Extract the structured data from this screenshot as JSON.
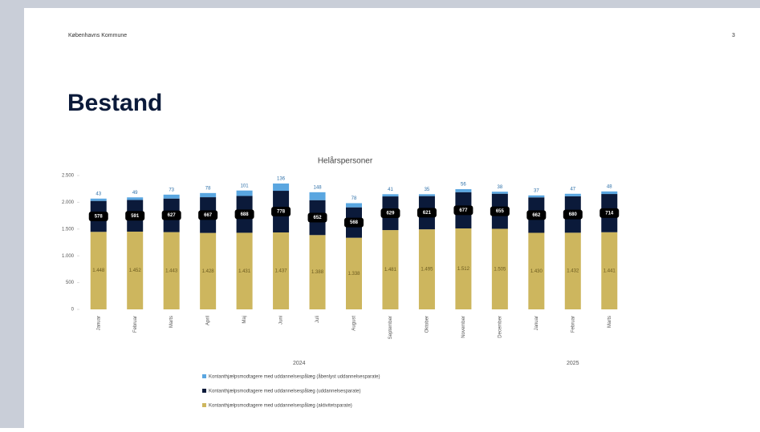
{
  "header": {
    "organization": "Københavns Kommune",
    "page_number": "3"
  },
  "title": "Bestand",
  "chart_data": {
    "type": "stacked_bar",
    "title": "Helårspersoner",
    "category_groups": [
      {
        "label": "2024",
        "categories": [
          "Januar",
          "Februar",
          "Marts",
          "April",
          "Maj",
          "Juni",
          "Juli",
          "August",
          "September",
          "Oktober",
          "November",
          "December"
        ]
      },
      {
        "label": "2025",
        "categories": [
          "Januar",
          "Februar",
          "Marts"
        ]
      }
    ],
    "series": [
      {
        "name": "Kontanthjælpsmodtagere med uddannelsespålæg (aktivitetsparate)",
        "color": "#cdb65e",
        "values": [
          1448,
          1452,
          1443,
          1428,
          1431,
          1437,
          1388,
          1338,
          1481,
          1495,
          1512,
          1505,
          1430,
          1432,
          1441
        ],
        "value_labels": [
          "1.448",
          "1.452",
          "1.443",
          "1.428",
          "1.431",
          "1.437",
          "1.388",
          "1.338",
          "1.481",
          "1.495",
          "1.512",
          "1.505",
          "1.430",
          "1.432",
          "1.441"
        ]
      },
      {
        "name": "Kontanthjælpsmodtagere med uddannelsespålæg (uddannelsesparate)",
        "color": "#0b1a3a",
        "values": [
          578,
          591,
          627,
          667,
          688,
          778,
          652,
          568,
          629,
          621,
          677,
          655,
          662,
          680,
          714
        ]
      },
      {
        "name": "Kontanthjælpsmodtagere med uddannelsespålæg (åbenlyst uddannelsesparate)",
        "color": "#5aa6e0",
        "values": [
          43,
          49,
          73,
          78,
          101,
          136,
          148,
          78,
          41,
          35,
          56,
          38,
          37,
          47,
          48
        ]
      }
    ],
    "ylim": [
      0,
      2500
    ],
    "yticks": [
      0,
      500,
      {
        "value": 1000,
        "label": "1.000"
      },
      {
        "value": 1500,
        "label": "1.500"
      },
      {
        "value": 2000,
        "label": "2.000"
      },
      {
        "value": 2500,
        "label": "2.500"
      }
    ]
  }
}
